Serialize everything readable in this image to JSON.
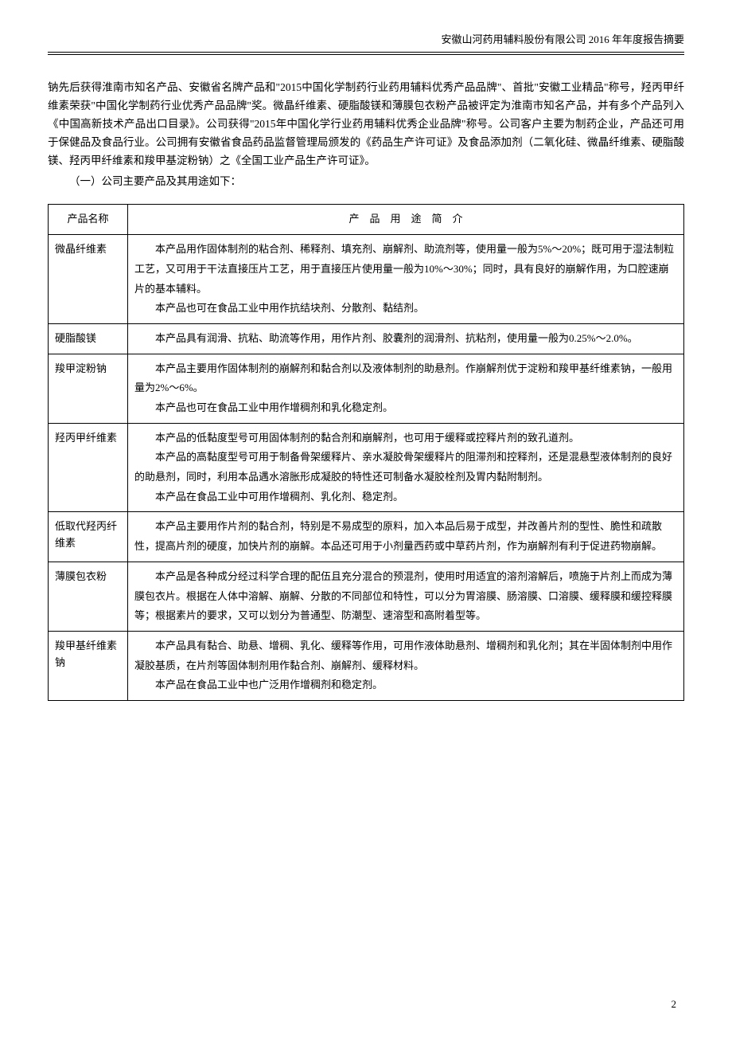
{
  "header": {
    "title": "安徽山河药用辅料股份有限公司 2016 年年度报告摘要"
  },
  "body": {
    "para1": "钠先后获得淮南市知名产品、安徽省名牌产品和\"2015中国化学制药行业药用辅料优秀产品品牌\"、首批\"安徽工业精品\"称号，羟丙甲纤维素荣获\"中国化学制药行业优秀产品品牌\"奖。微晶纤维素、硬脂酸镁和薄膜包衣粉产品被评定为淮南市知名产品，并有多个产品列入《中国高新技术产品出口目录》。公司获得\"2015年中国化学行业药用辅料优秀企业品牌\"称号。公司客户主要为制药企业，产品还可用于保健品及食品行业。公司拥有安徽省食品药品监督管理局颁发的《药品生产许可证》及食品添加剂（二氧化硅、微晶纤维素、硬脂酸镁、羟丙甲纤维素和羧甲基淀粉钠）之《全国工业产品生产许可证》。",
    "subsection": "（一）公司主要产品及其用途如下："
  },
  "table": {
    "headers": {
      "name": "产品名称",
      "desc": "产　品　用　途　简　介"
    },
    "rows": [
      {
        "name": "微晶纤维素",
        "desc_paras": [
          "本产品用作固体制剂的粘合剂、稀释剂、填充剂、崩解剂、助流剂等，使用量一般为5%～20%；既可用于湿法制粒工艺，又可用于干法直接压片工艺，用于直接压片使用量一般为10%～30%；同时，具有良好的崩解作用，为口腔速崩片的基本辅料。",
          "本产品也可在食品工业中用作抗结块剂、分散剂、黏结剂。"
        ]
      },
      {
        "name": "硬脂酸镁",
        "desc_paras": [
          "本产品具有润滑、抗粘、助流等作用，用作片剂、胶囊剂的润滑剂、抗粘剂，使用量一般为0.25%～2.0%。"
        ]
      },
      {
        "name": "羧甲淀粉钠",
        "desc_paras": [
          "本产品主要用作固体制剂的崩解剂和黏合剂以及液体制剂的助悬剂。作崩解剂优于淀粉和羧甲基纤维素钠，一般用量为2%～6%。",
          "本产品也可在食品工业中用作增稠剂和乳化稳定剂。"
        ]
      },
      {
        "name": "羟丙甲纤维素",
        "desc_paras": [
          "本产品的低黏度型号可用固体制剂的黏合剂和崩解剂，也可用于缓释或控释片剂的致孔道剂。",
          "本产品的高黏度型号可用于制备骨架缓释片、亲水凝胶骨架缓释片的阻滞剂和控释剂，还是混悬型液体制剂的良好的助悬剂，同时，利用本品遇水溶胀形成凝胶的特性还可制备水凝胶栓剂及胃内黏附制剂。",
          "本产品在食品工业中可用作增稠剂、乳化剂、稳定剂。"
        ]
      },
      {
        "name": "低取代羟丙纤维素",
        "desc_paras": [
          "本产品主要用作片剂的黏合剂，特别是不易成型的原料，加入本品后易于成型，并改善片剂的型性、脆性和疏散性，提高片剂的硬度，加快片剂的崩解。本品还可用于小剂量西药或中草药片剂，作为崩解剂有利于促进药物崩解。"
        ]
      },
      {
        "name": "薄膜包衣粉",
        "desc_paras": [
          "本产品是各种成分经过科学合理的配伍且充分混合的预混剂，使用时用适宜的溶剂溶解后，喷施于片剂上而成为薄膜包衣片。根据在人体中溶解、崩解、分散的不同部位和特性，可以分为胃溶膜、肠溶膜、口溶膜、缓释膜和缓控释膜等；根据素片的要求，又可以划分为普通型、防潮型、速溶型和高附着型等。"
        ]
      },
      {
        "name": "羧甲基纤维素钠",
        "desc_paras": [
          "本产品具有黏合、助悬、增稠、乳化、缓释等作用，可用作液体助悬剂、增稠剂和乳化剂；其在半固体制剂中用作凝胶基质，在片剂等固体制剂用作黏合剂、崩解剂、缓释材料。",
          "本产品在食品工业中也广泛用作增稠剂和稳定剂。"
        ]
      }
    ]
  },
  "page_number": "2",
  "colors": {
    "text": "#000000",
    "background": "#ffffff",
    "border": "#000000"
  }
}
